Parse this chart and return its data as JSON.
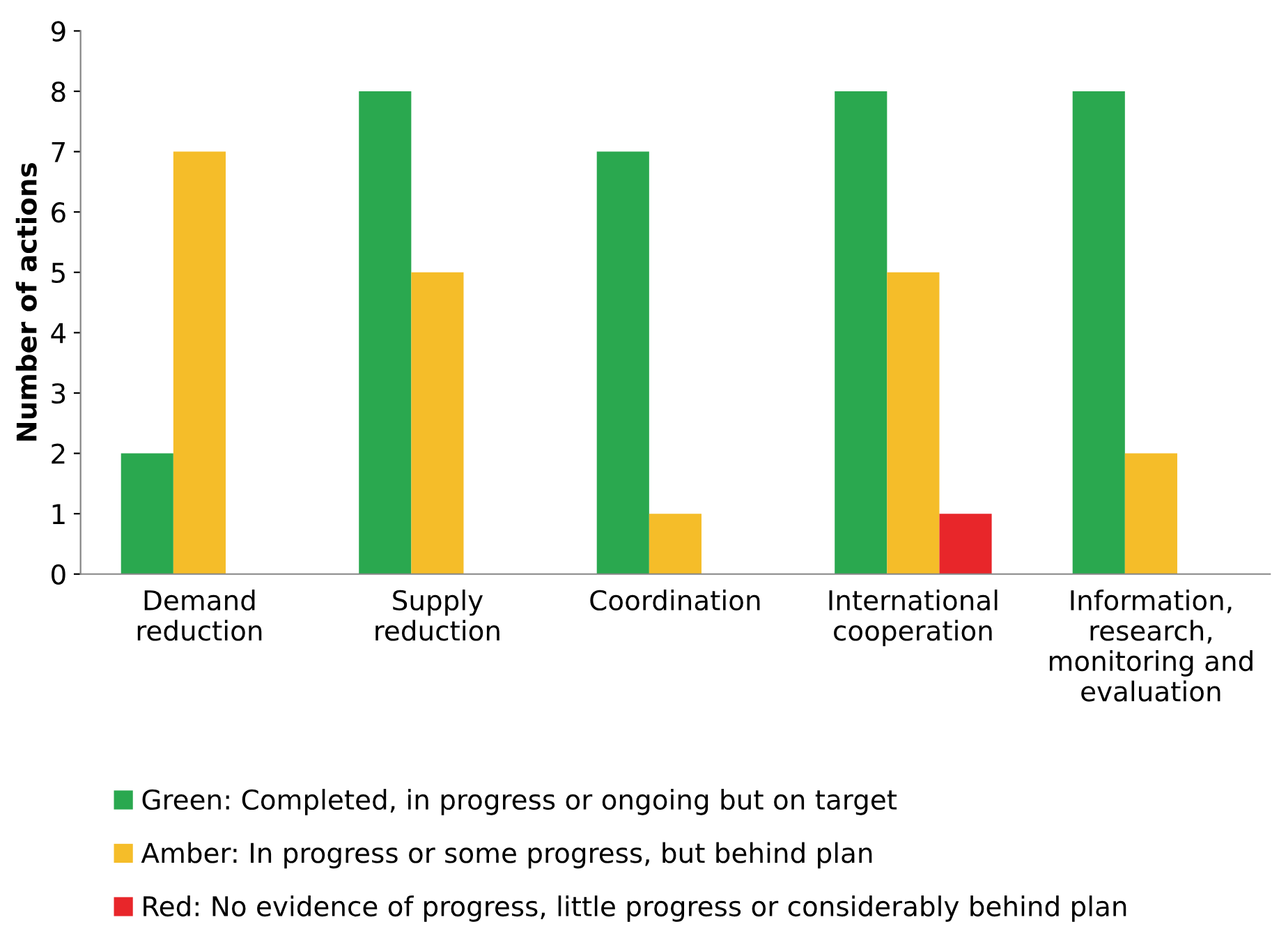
{
  "chart_data": {
    "type": "bar",
    "ylabel": "Number of actions",
    "categories": [
      "Demand\nreduction",
      "Supply\nreduction",
      "Coordination",
      "International\ncooperation",
      "Information,\nresearch,\nmonitoring and\nevaluation"
    ],
    "series": [
      {
        "name": "Green: Completed, in progress or ongoing but on target",
        "color": "#2aa84f",
        "values": [
          2,
          8,
          7,
          8,
          8
        ]
      },
      {
        "name": "Amber: In progress or some progress, but behind plan",
        "color": "#f5bd29",
        "values": [
          7,
          5,
          1,
          5,
          2
        ]
      },
      {
        "name": "Red: No evidence of progress, little progress or considerably behind plan",
        "color": "#e8262a",
        "values": [
          0,
          0,
          0,
          1,
          0
        ]
      }
    ],
    "ylim": [
      0,
      9
    ],
    "yticks": [
      0,
      1,
      2,
      3,
      4,
      5,
      6,
      7,
      8,
      9
    ],
    "grid": false,
    "legend": "bottom"
  }
}
